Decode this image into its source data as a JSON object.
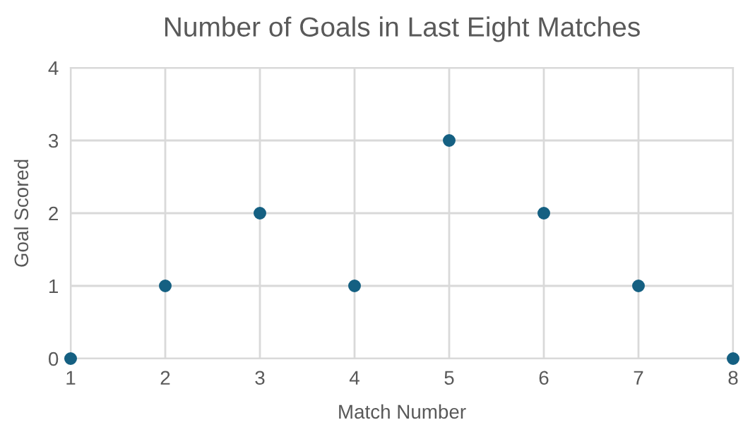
{
  "chart_data": {
    "type": "scatter",
    "title": "Number of Goals in Last Eight Matches",
    "xlabel": "Match Number",
    "ylabel": "Goal Scored",
    "x": [
      1,
      2,
      3,
      4,
      5,
      6,
      7,
      8
    ],
    "series": [
      {
        "color": "#156082",
        "values": [
          0,
          1,
          2,
          1,
          3,
          2,
          1,
          0
        ]
      }
    ],
    "xlim": [
      1,
      8
    ],
    "xticks": [
      1,
      2,
      3,
      4,
      5,
      6,
      7,
      8
    ],
    "ylim": [
      0,
      4
    ],
    "yticks": [
      0,
      1,
      2,
      3,
      4
    ],
    "grid": true,
    "marker": "circle",
    "legend": false
  }
}
